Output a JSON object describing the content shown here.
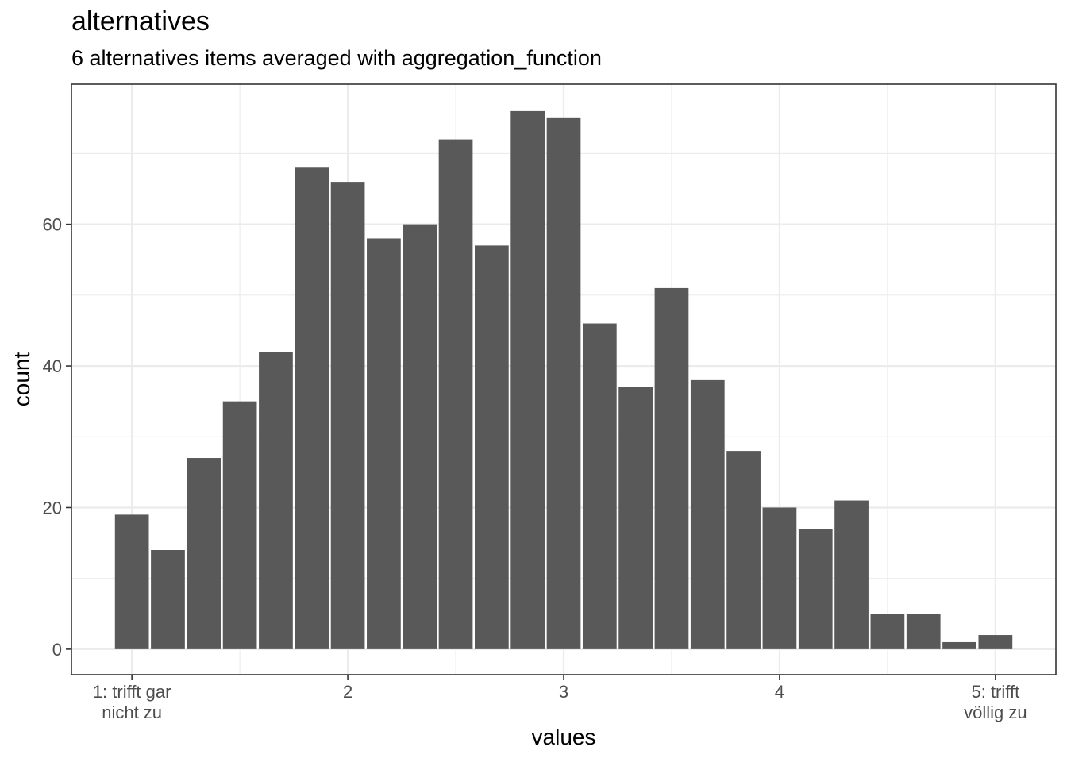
{
  "chart_data": {
    "type": "bar",
    "title": "alternatives",
    "subtitle": "6 alternatives items averaged with aggregation_function",
    "xlabel": "values",
    "ylabel": "count",
    "x": [
      1.0,
      1.1667,
      1.3333,
      1.5,
      1.6667,
      1.8333,
      2.0,
      2.1667,
      2.3333,
      2.5,
      2.6667,
      2.8333,
      3.0,
      3.1667,
      3.3333,
      3.5,
      3.6667,
      3.8333,
      4.0,
      4.1667,
      4.3333,
      4.5,
      4.6667,
      4.8333,
      5.0
    ],
    "values": [
      19,
      14,
      27,
      35,
      42,
      68,
      66,
      58,
      60,
      72,
      57,
      76,
      75,
      46,
      37,
      51,
      38,
      28,
      20,
      17,
      21,
      5,
      5,
      1,
      2
    ],
    "xlim": [
      0.72,
      5.28
    ],
    "ylim": [
      -3.6,
      79.8
    ],
    "x_ticks": [
      {
        "value": 1,
        "lines": [
          "1: trifft gar",
          "nicht zu"
        ]
      },
      {
        "value": 2,
        "lines": [
          "2"
        ]
      },
      {
        "value": 3,
        "lines": [
          "3"
        ]
      },
      {
        "value": 4,
        "lines": [
          "4"
        ]
      },
      {
        "value": 5,
        "lines": [
          "5: trifft",
          "völlig zu"
        ]
      }
    ],
    "y_ticks": [
      0,
      20,
      40,
      60
    ],
    "grid": true,
    "bar_color": "#595959",
    "grid_color": "#ebebeb",
    "panel_border_color": "#333333"
  }
}
